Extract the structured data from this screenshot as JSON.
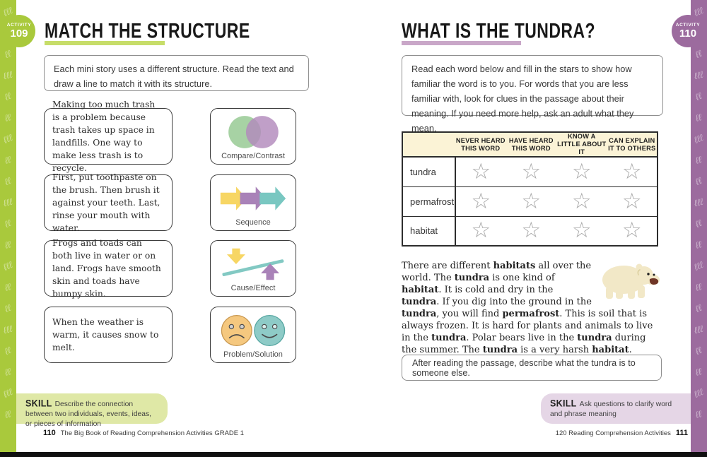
{
  "left_page": {
    "activity_badge": {
      "label": "ACTIVITY",
      "number": "109"
    },
    "title": "MATCH THE STRUCTURE",
    "instructions": "Each mini story uses a different structure. Read the text and draw a line to match it with its structure.",
    "stories": [
      {
        "text": "Making too much trash is a problem because trash takes up space in landfills. One way to make less trash is to recycle."
      },
      {
        "text": "First, put toothpaste on the brush. Then brush it against your teeth. Last, rinse your mouth with water."
      },
      {
        "text": "Frogs and toads can both live in water or on land. Frogs have smooth skin and toads have bumpy skin."
      },
      {
        "text": "When the weather is warm, it causes snow to melt."
      }
    ],
    "structures": [
      {
        "label": "Compare/Contrast",
        "icon": "venn-diagram-icon"
      },
      {
        "label": "Sequence",
        "icon": "sequence-arrows-icon"
      },
      {
        "label": "Cause/Effect",
        "icon": "cause-effect-arrows-icon"
      },
      {
        "label": "Problem/Solution",
        "icon": "sad-happy-faces-icon"
      }
    ],
    "skill": {
      "label": "SKILL",
      "text": "Describe the connection between two individuals, events, ideas, or pieces of information"
    },
    "footer": {
      "page_number": "110",
      "text": "The Big Book of Reading Comprehension Activities GRADE 1"
    }
  },
  "right_page": {
    "activity_badge": {
      "label": "ACTIVITY",
      "number": "110"
    },
    "title": "WHAT IS THE TUNDRA?",
    "instructions": "Read each word below and fill in the stars to show how familiar the word is to you. For words that you are less familiar with, look for clues in the passage about their meaning. If you need more help, ask an adult what they mean.",
    "table": {
      "columns": [
        "NEVER HEARD THIS WORD",
        "HAVE HEARD THIS WORD",
        "KNOW A LITTLE ABOUT IT",
        "CAN EXPLAIN IT TO OTHERS"
      ],
      "rows": [
        "tundra",
        "permafrost",
        "habitat"
      ],
      "star_icon": "☆"
    },
    "passage_segments": [
      {
        "t": "There are different ",
        "b": false
      },
      {
        "t": "habitats",
        "b": true
      },
      {
        "t": " all over the world. The ",
        "b": false
      },
      {
        "t": "tundra",
        "b": true
      },
      {
        "t": " is one kind of ",
        "b": false
      },
      {
        "t": "habitat",
        "b": true
      },
      {
        "t": ". It is cold and dry in the ",
        "b": false
      },
      {
        "t": "tundra",
        "b": true
      },
      {
        "t": ". If you dig into the ground in the ",
        "b": false
      },
      {
        "t": "tundra",
        "b": true
      },
      {
        "t": ", you will find ",
        "b": false
      },
      {
        "t": "permafrost",
        "b": true
      },
      {
        "t": ". This is soil that is always frozen. It is hard for plants and animals to live in the ",
        "b": false
      },
      {
        "t": "tundra",
        "b": true
      },
      {
        "t": ". Polar bears live in the ",
        "b": false
      },
      {
        "t": "tundra",
        "b": true
      },
      {
        "t": " during the summer. The ",
        "b": false
      },
      {
        "t": "tundra",
        "b": true
      },
      {
        "t": " is a very harsh ",
        "b": false
      },
      {
        "t": "habitat",
        "b": true
      },
      {
        "t": ".",
        "b": false
      }
    ],
    "after_box": "After reading the passage, describe what the tundra is to someone else.",
    "skill": {
      "label": "SKILL",
      "text": "Ask questions to clarify word and phrase meaning"
    },
    "footer": {
      "text": "120 Reading Comprehension Activities",
      "page_number": "111"
    }
  },
  "colors": {
    "left_accent": "#a9c93c",
    "left_underline": "#c7dd69",
    "right_accent": "#9c6b9e",
    "right_underline": "#c9a7c8",
    "table_header_bg": "#fbf3d6",
    "skill_left_bg": "#dfe8a6",
    "skill_right_bg": "#e5d6e6"
  }
}
